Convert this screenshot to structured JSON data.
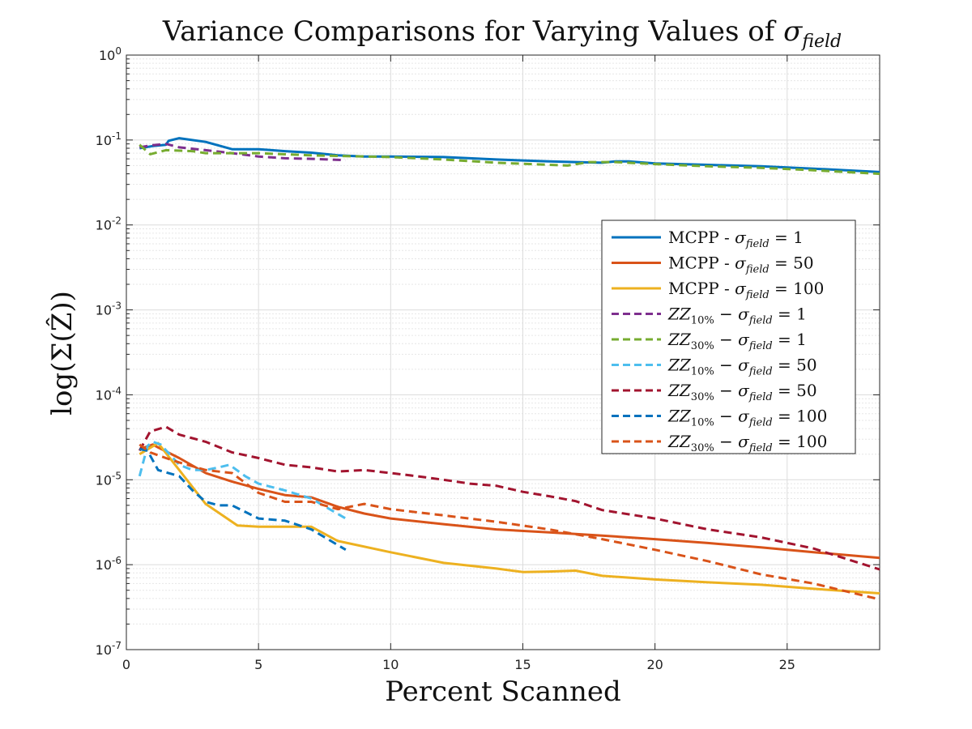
{
  "chart_data": {
    "type": "line",
    "title_main": "Variance Comparisons for Varying Values of ",
    "title_sigma": "σ",
    "title_sub": "field",
    "xlabel": "Percent Scanned",
    "ylabel": "log(Σ(Ẑ))",
    "xlim": [
      0,
      28.5
    ],
    "yscale": "log",
    "ylim": [
      1e-07,
      1
    ],
    "grid": true,
    "legend_position": "right",
    "x_ticks": [
      0,
      5,
      10,
      15,
      20,
      25
    ],
    "x_tick_labels": [
      "0",
      "5",
      "10",
      "15",
      "20",
      "25"
    ],
    "y_ticks": [
      1e-07,
      1e-06,
      1e-05,
      0.0001,
      0.001,
      0.01,
      0.1,
      1
    ],
    "y_tick_base": "10",
    "y_tick_exponents": [
      "-7",
      "-6",
      "-5",
      "-4",
      "-3",
      "-2",
      "-1",
      "0"
    ],
    "series": [
      {
        "name": "MCPP - σfield = 1",
        "legend_prefix": "MCPP - ",
        "legend_var": "σ",
        "legend_sub": "field",
        "legend_suffix": " = 1",
        "color": "#0072BD",
        "dash": "solid",
        "x": [
          0.5,
          1.0,
          1.5,
          1.6,
          2.0,
          3.0,
          4.0,
          5.0,
          5.5,
          6.0,
          7.0,
          8.0,
          9.0,
          10.0,
          12.0,
          14.0,
          16.0,
          17.0,
          18.0,
          18.5,
          19.0,
          20.0,
          22.0,
          24.0,
          26.0,
          28.5
        ],
        "y": [
          0.08,
          0.085,
          0.088,
          0.098,
          0.105,
          0.095,
          0.078,
          0.078,
          0.076,
          0.074,
          0.071,
          0.066,
          0.064,
          0.064,
          0.063,
          0.059,
          0.056,
          0.055,
          0.054,
          0.056,
          0.056,
          0.053,
          0.051,
          0.049,
          0.046,
          0.042
        ]
      },
      {
        "name": "MCPP - σfield = 50",
        "legend_prefix": "MCPP - ",
        "legend_var": "σ",
        "legend_sub": "field",
        "legend_suffix": " = 50",
        "color": "#D95319",
        "dash": "solid",
        "x": [
          0.5,
          1.0,
          1.2,
          2.0,
          3.0,
          4.0,
          5.0,
          6.0,
          7.0,
          8.0,
          9.0,
          10.0,
          12.0,
          14.0,
          16.0,
          18.0,
          20.0,
          22.0,
          24.0,
          26.0,
          28.5
        ],
        "y": [
          2.3e-05,
          2.6e-05,
          2.4e-05,
          1.8e-05,
          1.2e-05,
          9.5e-06,
          7.8e-06,
          6.6e-06,
          6.2e-06,
          4.8e-06,
          4e-06,
          3.5e-06,
          3e-06,
          2.6e-06,
          2.4e-06,
          2.2e-06,
          2e-06,
          1.8e-06,
          1.6e-06,
          1.4e-06,
          1.2e-06
        ]
      },
      {
        "name": "MCPP - σfield = 100",
        "legend_prefix": "MCPP - ",
        "legend_var": "σ",
        "legend_sub": "field",
        "legend_suffix": " = 100",
        "color": "#EDB120",
        "dash": "solid",
        "x": [
          0.5,
          1.2,
          2.0,
          3.0,
          4.2,
          5.0,
          6.0,
          7.0,
          8.0,
          10.0,
          12.0,
          14.0,
          15.0,
          16.0,
          17.0,
          18.0,
          20.0,
          22.0,
          24.0,
          26.0,
          28.5
        ],
        "y": [
          2e-05,
          2.7e-05,
          1.3e-05,
          5.2e-06,
          2.9e-06,
          2.8e-06,
          2.8e-06,
          2.8e-06,
          1.9e-06,
          1.4e-06,
          1.05e-06,
          9e-07,
          8.2e-07,
          8.3e-07,
          8.5e-07,
          7.4e-07,
          6.7e-07,
          6.2e-07,
          5.8e-07,
          5.2e-07,
          4.6e-07
        ]
      },
      {
        "name": "ZZ10% − σfield = 1",
        "legend_prefix": "ZZ",
        "legend_prefix_sub": "10%",
        "legend_var": " − σ",
        "legend_sub": "field",
        "legend_suffix": " = 1",
        "color": "#7E2F8E",
        "dash": "dashed",
        "x": [
          0.5,
          1.0,
          1.5,
          2.0,
          3.0,
          4.0,
          5.0,
          6.0,
          7.0,
          8.3
        ],
        "y": [
          0.082,
          0.087,
          0.09,
          0.082,
          0.076,
          0.07,
          0.064,
          0.061,
          0.06,
          0.058
        ]
      },
      {
        "name": "ZZ30% − σfield = 1",
        "legend_prefix": "ZZ",
        "legend_prefix_sub": "30%",
        "legend_var": " − σ",
        "legend_sub": "field",
        "legend_suffix": " = 1",
        "color": "#77AC30",
        "dash": "dashed",
        "x": [
          0.5,
          0.9,
          1.5,
          2.5,
          3.0,
          5.0,
          7.0,
          10.0,
          12.0,
          14.0,
          16.0,
          16.7,
          17.5,
          18.5,
          20.0,
          22.0,
          24.0,
          26.0,
          28.5
        ],
        "y": [
          0.088,
          0.068,
          0.076,
          0.074,
          0.07,
          0.07,
          0.066,
          0.063,
          0.059,
          0.054,
          0.051,
          0.05,
          0.055,
          0.055,
          0.052,
          0.049,
          0.047,
          0.044,
          0.04
        ]
      },
      {
        "name": "ZZ10% − σfield = 50",
        "legend_prefix": "ZZ",
        "legend_prefix_sub": "10%",
        "legend_var": " − σ",
        "legend_sub": "field",
        "legend_suffix": " = 50",
        "color": "#4DBEEE",
        "dash": "dashed",
        "x": [
          0.5,
          0.8,
          1.0,
          1.3,
          2.0,
          2.5,
          3.0,
          3.5,
          3.9,
          4.5,
          5.0,
          6.0,
          7.0,
          8.3
        ],
        "y": [
          1.1e-05,
          2.5e-05,
          2.8e-05,
          2.6e-05,
          1.5e-05,
          1.3e-05,
          1.3e-05,
          1.4e-05,
          1.5e-05,
          1.1e-05,
          9e-06,
          7.5e-06,
          6e-06,
          3.5e-06
        ]
      },
      {
        "name": "ZZ30% − σfield = 50",
        "legend_prefix": "ZZ",
        "legend_prefix_sub": "30%",
        "legend_var": " − σ",
        "legend_sub": "field",
        "legend_suffix": " = 50",
        "color": "#A2142F",
        "dash": "dashed",
        "x": [
          0.5,
          0.9,
          1.5,
          2.0,
          3.0,
          4.0,
          5.0,
          6.0,
          7.0,
          8.0,
          9.0,
          10.0,
          11.0,
          12.0,
          13.0,
          14.0,
          15.0,
          16.0,
          17.0,
          18.0,
          20.0,
          22.0,
          24.0,
          26.0,
          28.5
        ],
        "y": [
          2.2e-05,
          3.7e-05,
          4.2e-05,
          3.4e-05,
          2.8e-05,
          2.1e-05,
          1.8e-05,
          1.5e-05,
          1.4e-05,
          1.25e-05,
          1.3e-05,
          1.2e-05,
          1.1e-05,
          1e-05,
          9e-06,
          8.5e-06,
          7.2e-06,
          6.4e-06,
          5.6e-06,
          4.4e-06,
          3.5e-06,
          2.6e-06,
          2.1e-06,
          1.55e-06,
          8.8e-07
        ]
      },
      {
        "name": "ZZ10% − σfield = 100",
        "legend_prefix": "ZZ",
        "legend_prefix_sub": "10%",
        "legend_var": " − σ",
        "legend_sub": "field",
        "legend_suffix": " = 100",
        "color": "#0072BD",
        "dash": "dashed",
        "x": [
          0.5,
          0.8,
          1.2,
          2.0,
          2.5,
          3.0,
          3.5,
          4.0,
          5.0,
          6.0,
          7.0,
          8.3
        ],
        "y": [
          2.3e-05,
          2.2e-05,
          1.3e-05,
          1.1e-05,
          7.5e-06,
          5.5e-06,
          5e-06,
          5e-06,
          3.5e-06,
          3.3e-06,
          2.6e-06,
          1.5e-06
        ]
      },
      {
        "name": "ZZ30% − σfield = 100",
        "legend_prefix": "ZZ",
        "legend_prefix_sub": "30%",
        "legend_var": " − σ",
        "legend_sub": "field",
        "legend_suffix": " = 100",
        "color": "#D95319",
        "dash": "dashed",
        "x": [
          0.5,
          0.9,
          1.5,
          2.0,
          3.0,
          4.0,
          5.0,
          6.0,
          7.0,
          8.0,
          9.0,
          10.0,
          12.0,
          14.0,
          16.0,
          18.0,
          20.0,
          22.0,
          24.0,
          26.0,
          28.5
        ],
        "y": [
          2.6e-05,
          2.1e-05,
          1.8e-05,
          1.6e-05,
          1.3e-05,
          1.2e-05,
          7e-06,
          5.5e-06,
          5.5e-06,
          4.5e-06,
          5.2e-06,
          4.5e-06,
          3.8e-06,
          3.2e-06,
          2.6e-06,
          2e-06,
          1.5e-06,
          1.1e-06,
          7.7e-07,
          6e-07,
          3.9e-07
        ]
      }
    ]
  }
}
